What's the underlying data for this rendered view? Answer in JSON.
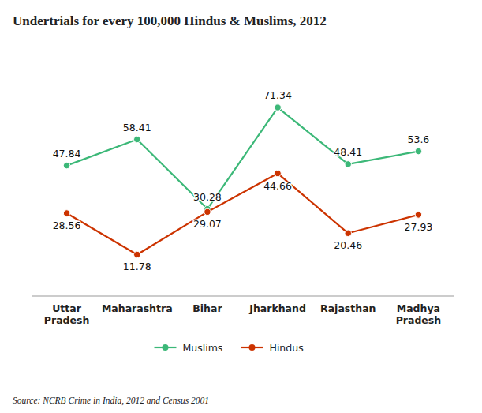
{
  "chart_data": {
    "type": "line",
    "title": "Undertrials for every 100,000 Hindus & Muslims, 2012",
    "categories": [
      "Uttar\nPradesh",
      "Maharashtra",
      "Bihar",
      "Jharkhand",
      "Rajasthan",
      "Madhya\nPradesh"
    ],
    "series": [
      {
        "name": "Muslims",
        "color": "#3cb878",
        "values": [
          47.84,
          58.41,
          30.28,
          71.34,
          48.41,
          53.6
        ]
      },
      {
        "name": "Hindus",
        "color": "#cc3300",
        "values": [
          28.56,
          11.78,
          29.07,
          44.66,
          20.46,
          27.93
        ]
      }
    ],
    "ylim": [
      -5,
      95
    ],
    "tick_labels": "x",
    "grid": false,
    "data_labels": true,
    "marker": "circle",
    "legend": "bottom",
    "source": "Source: NCRB Crime in India, 2012 and Census 2001"
  }
}
